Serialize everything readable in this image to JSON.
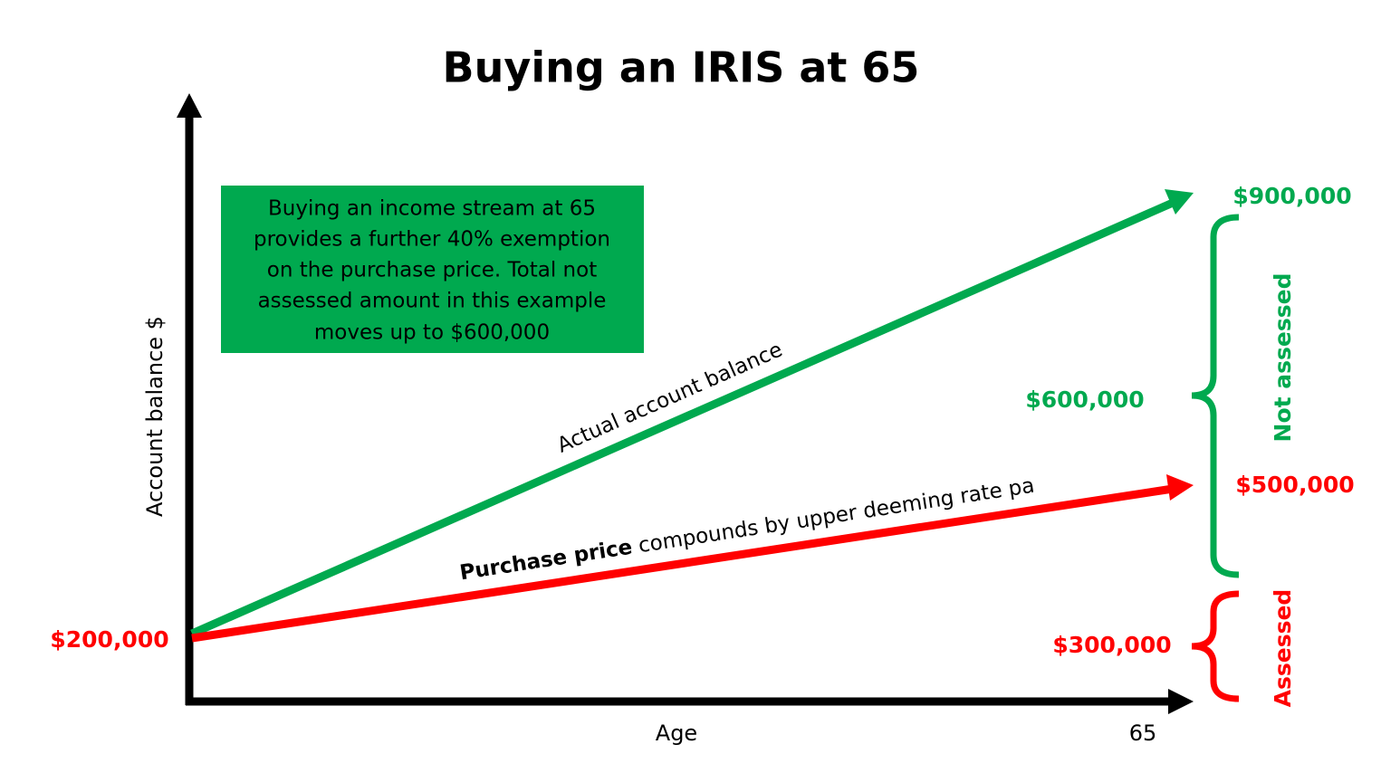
{
  "title": "Buying an IRIS at 65",
  "note": {
    "lines": [
      "Buying an income stream at 65",
      "provides a further 40% exemption",
      "on the purchase price. Total not",
      "assessed amount in this example",
      "moves up to $600,000"
    ]
  },
  "axes": {
    "y_label": "Account balance $",
    "x_label": "Age",
    "x_end": "65"
  },
  "lines": {
    "actual": {
      "label": "Actual account balance"
    },
    "purchase": {
      "label_bold": "Purchase price",
      "label_rest": " compounds by upper deeming rate pa"
    }
  },
  "amounts": {
    "start": "$200,000",
    "actual_end": "$900,000",
    "not_assessed": "$600,000",
    "purchase_end": "$500,000",
    "assessed": "$300,000"
  },
  "braces": {
    "not_assessed": "Not assessed",
    "assessed": "Assessed"
  }
}
